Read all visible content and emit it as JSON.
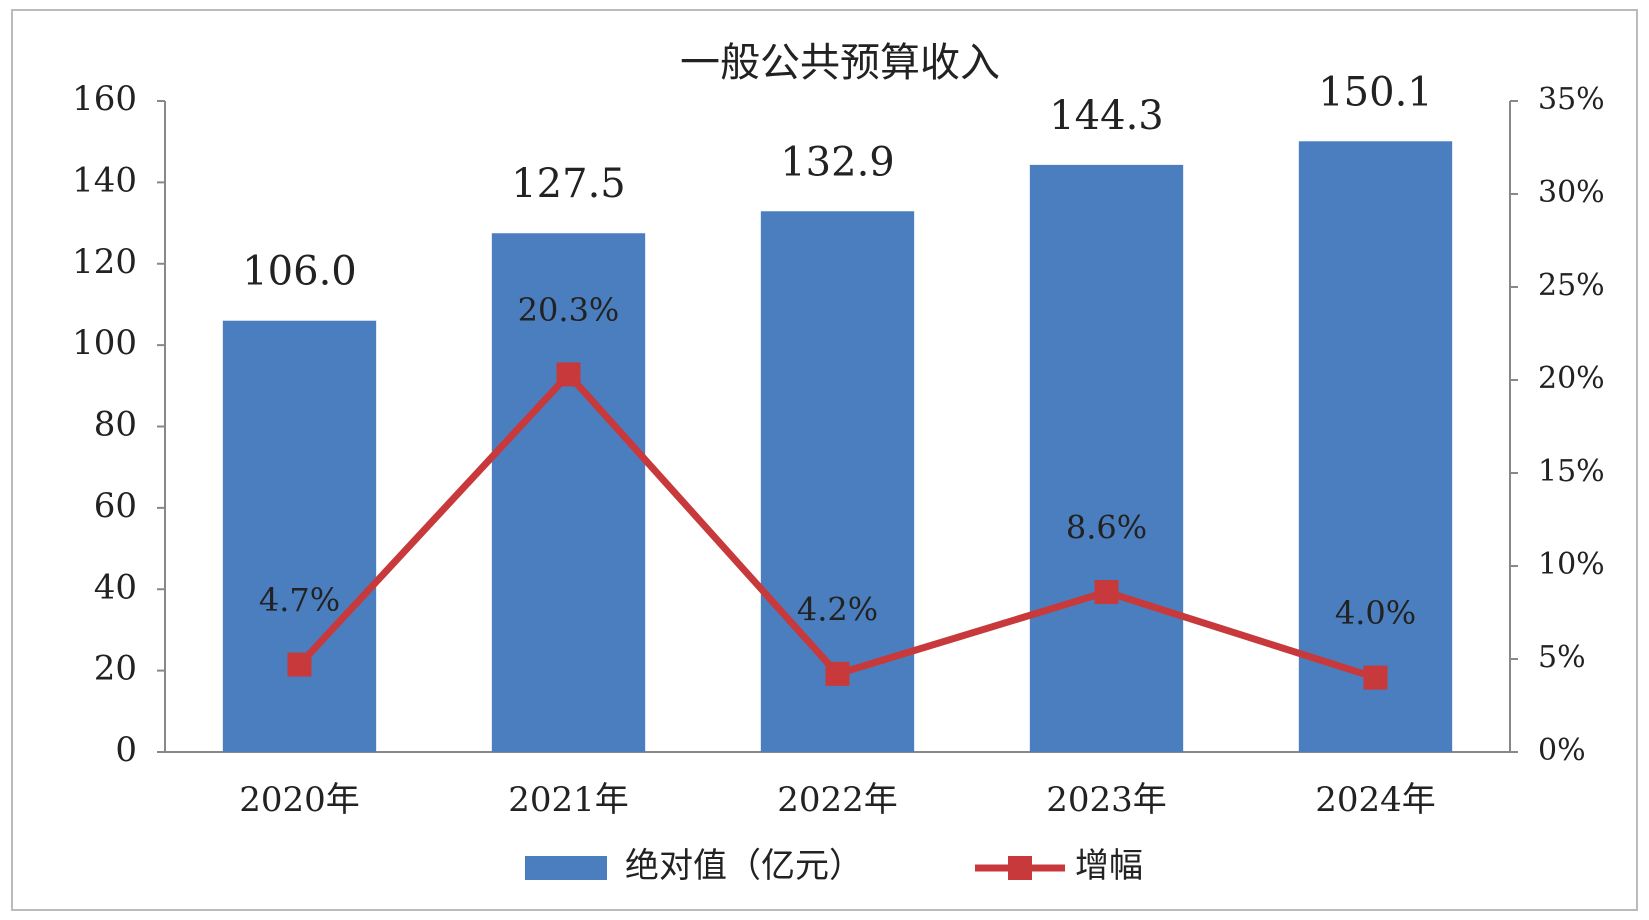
{
  "chart_data": {
    "type": "bar",
    "title": "一般公共预算收入",
    "categories": [
      "2020年",
      "2021年",
      "2022年",
      "2023年",
      "2024年"
    ],
    "series": [
      {
        "name": "绝对值（亿元）",
        "type": "bar",
        "color": "#4a7ebf",
        "values": [
          106.0,
          127.5,
          132.9,
          144.3,
          150.1
        ],
        "value_labels": [
          "106.0",
          "127.5",
          "132.9",
          "144.3",
          "150.1"
        ]
      },
      {
        "name": "增幅",
        "type": "line",
        "axis": "y2",
        "color": "#c8393c",
        "values": [
          4.7,
          20.3,
          4.2,
          8.6,
          4.0
        ],
        "value_labels": [
          "4.7%",
          "20.3%",
          "4.2%",
          "8.6%",
          "4.0%"
        ]
      }
    ],
    "ylim": [
      0,
      160
    ],
    "yticks": [
      0,
      20,
      40,
      60,
      80,
      100,
      120,
      140,
      160
    ],
    "y2lim": [
      0,
      35
    ],
    "y2ticks": [
      {
        "value": 0,
        "label": "0%"
      },
      {
        "value": 5,
        "label": "5%"
      },
      {
        "value": 10,
        "label": "10%"
      },
      {
        "value": 15,
        "label": "15%"
      },
      {
        "value": 20,
        "label": "20%"
      },
      {
        "value": 25,
        "label": "25%"
      },
      {
        "value": 30,
        "label": "30%"
      },
      {
        "value": 35,
        "label": "35%"
      }
    ],
    "legend": "bottom"
  }
}
